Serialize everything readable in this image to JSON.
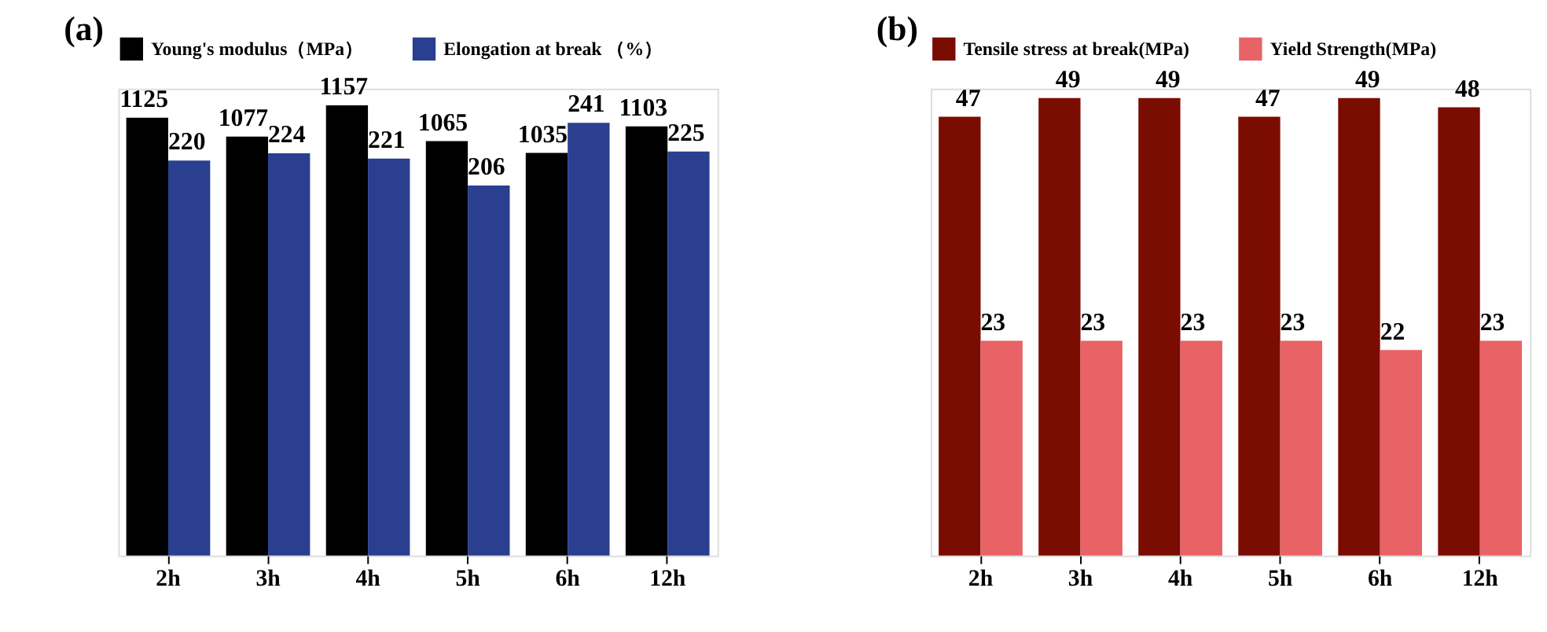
{
  "chart_data": [
    {
      "type": "bar",
      "title": "(a)",
      "categories": [
        "2h",
        "3h",
        "4h",
        "5h",
        "6h",
        "12h"
      ],
      "tick_labels": "x",
      "data_labels": true,
      "legend": "top",
      "series": [
        {
          "name": "Young's modulus（MPa）",
          "color": "#000000",
          "values": [
            1125,
            1077,
            1157,
            1065,
            1035,
            1103
          ]
        },
        {
          "name": "Elongation at break （%）",
          "color": "#2a3f8f",
          "axis": "y2",
          "values": [
            220,
            224,
            221,
            206,
            241,
            225
          ]
        }
      ]
    },
    {
      "type": "bar",
      "title": "(b)",
      "categories": [
        "2h",
        "3h",
        "4h",
        "5h",
        "6h",
        "12h"
      ],
      "tick_labels": "x",
      "data_labels": true,
      "legend": "top",
      "series": [
        {
          "name": "Tensile stress at break(MPa)",
          "color": "#7b0c02",
          "values": [
            47,
            49,
            49,
            47,
            49,
            48
          ]
        },
        {
          "name": "Yield Strength(MPa)",
          "color": "#e96266",
          "values": [
            23,
            23,
            23,
            23,
            22,
            23
          ]
        }
      ]
    }
  ]
}
